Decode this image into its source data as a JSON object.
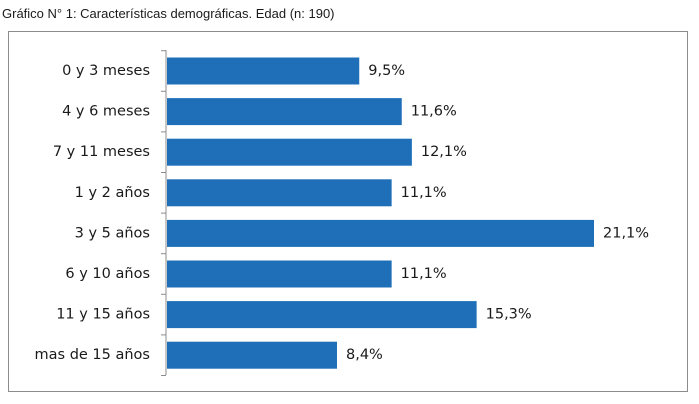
{
  "figure": {
    "caption": "Gráfico N° 1: Características demográficas. Edad (n: 190)"
  },
  "chart_data": {
    "type": "bar",
    "orientation": "horizontal",
    "categories": [
      "0 y 3 meses",
      "4 y 6 meses",
      "7 y 11 meses",
      "1 y 2 años",
      "3 y 5 años",
      "6 y 10 años",
      "11 y 15 años",
      "mas de 15 años"
    ],
    "values": [
      9.5,
      11.6,
      12.1,
      11.1,
      21.1,
      11.1,
      15.3,
      8.4
    ],
    "value_labels": [
      "9,5%",
      "11,6%",
      "12,1%",
      "11,1%",
      "21,1%",
      "11,1%",
      "15,3%",
      "8,4%"
    ],
    "title": "",
    "xlabel": "",
    "ylabel": "",
    "xlim": [
      0,
      21.1
    ],
    "grid": false,
    "legend": "none",
    "bar_color": "#1f6fb8"
  }
}
